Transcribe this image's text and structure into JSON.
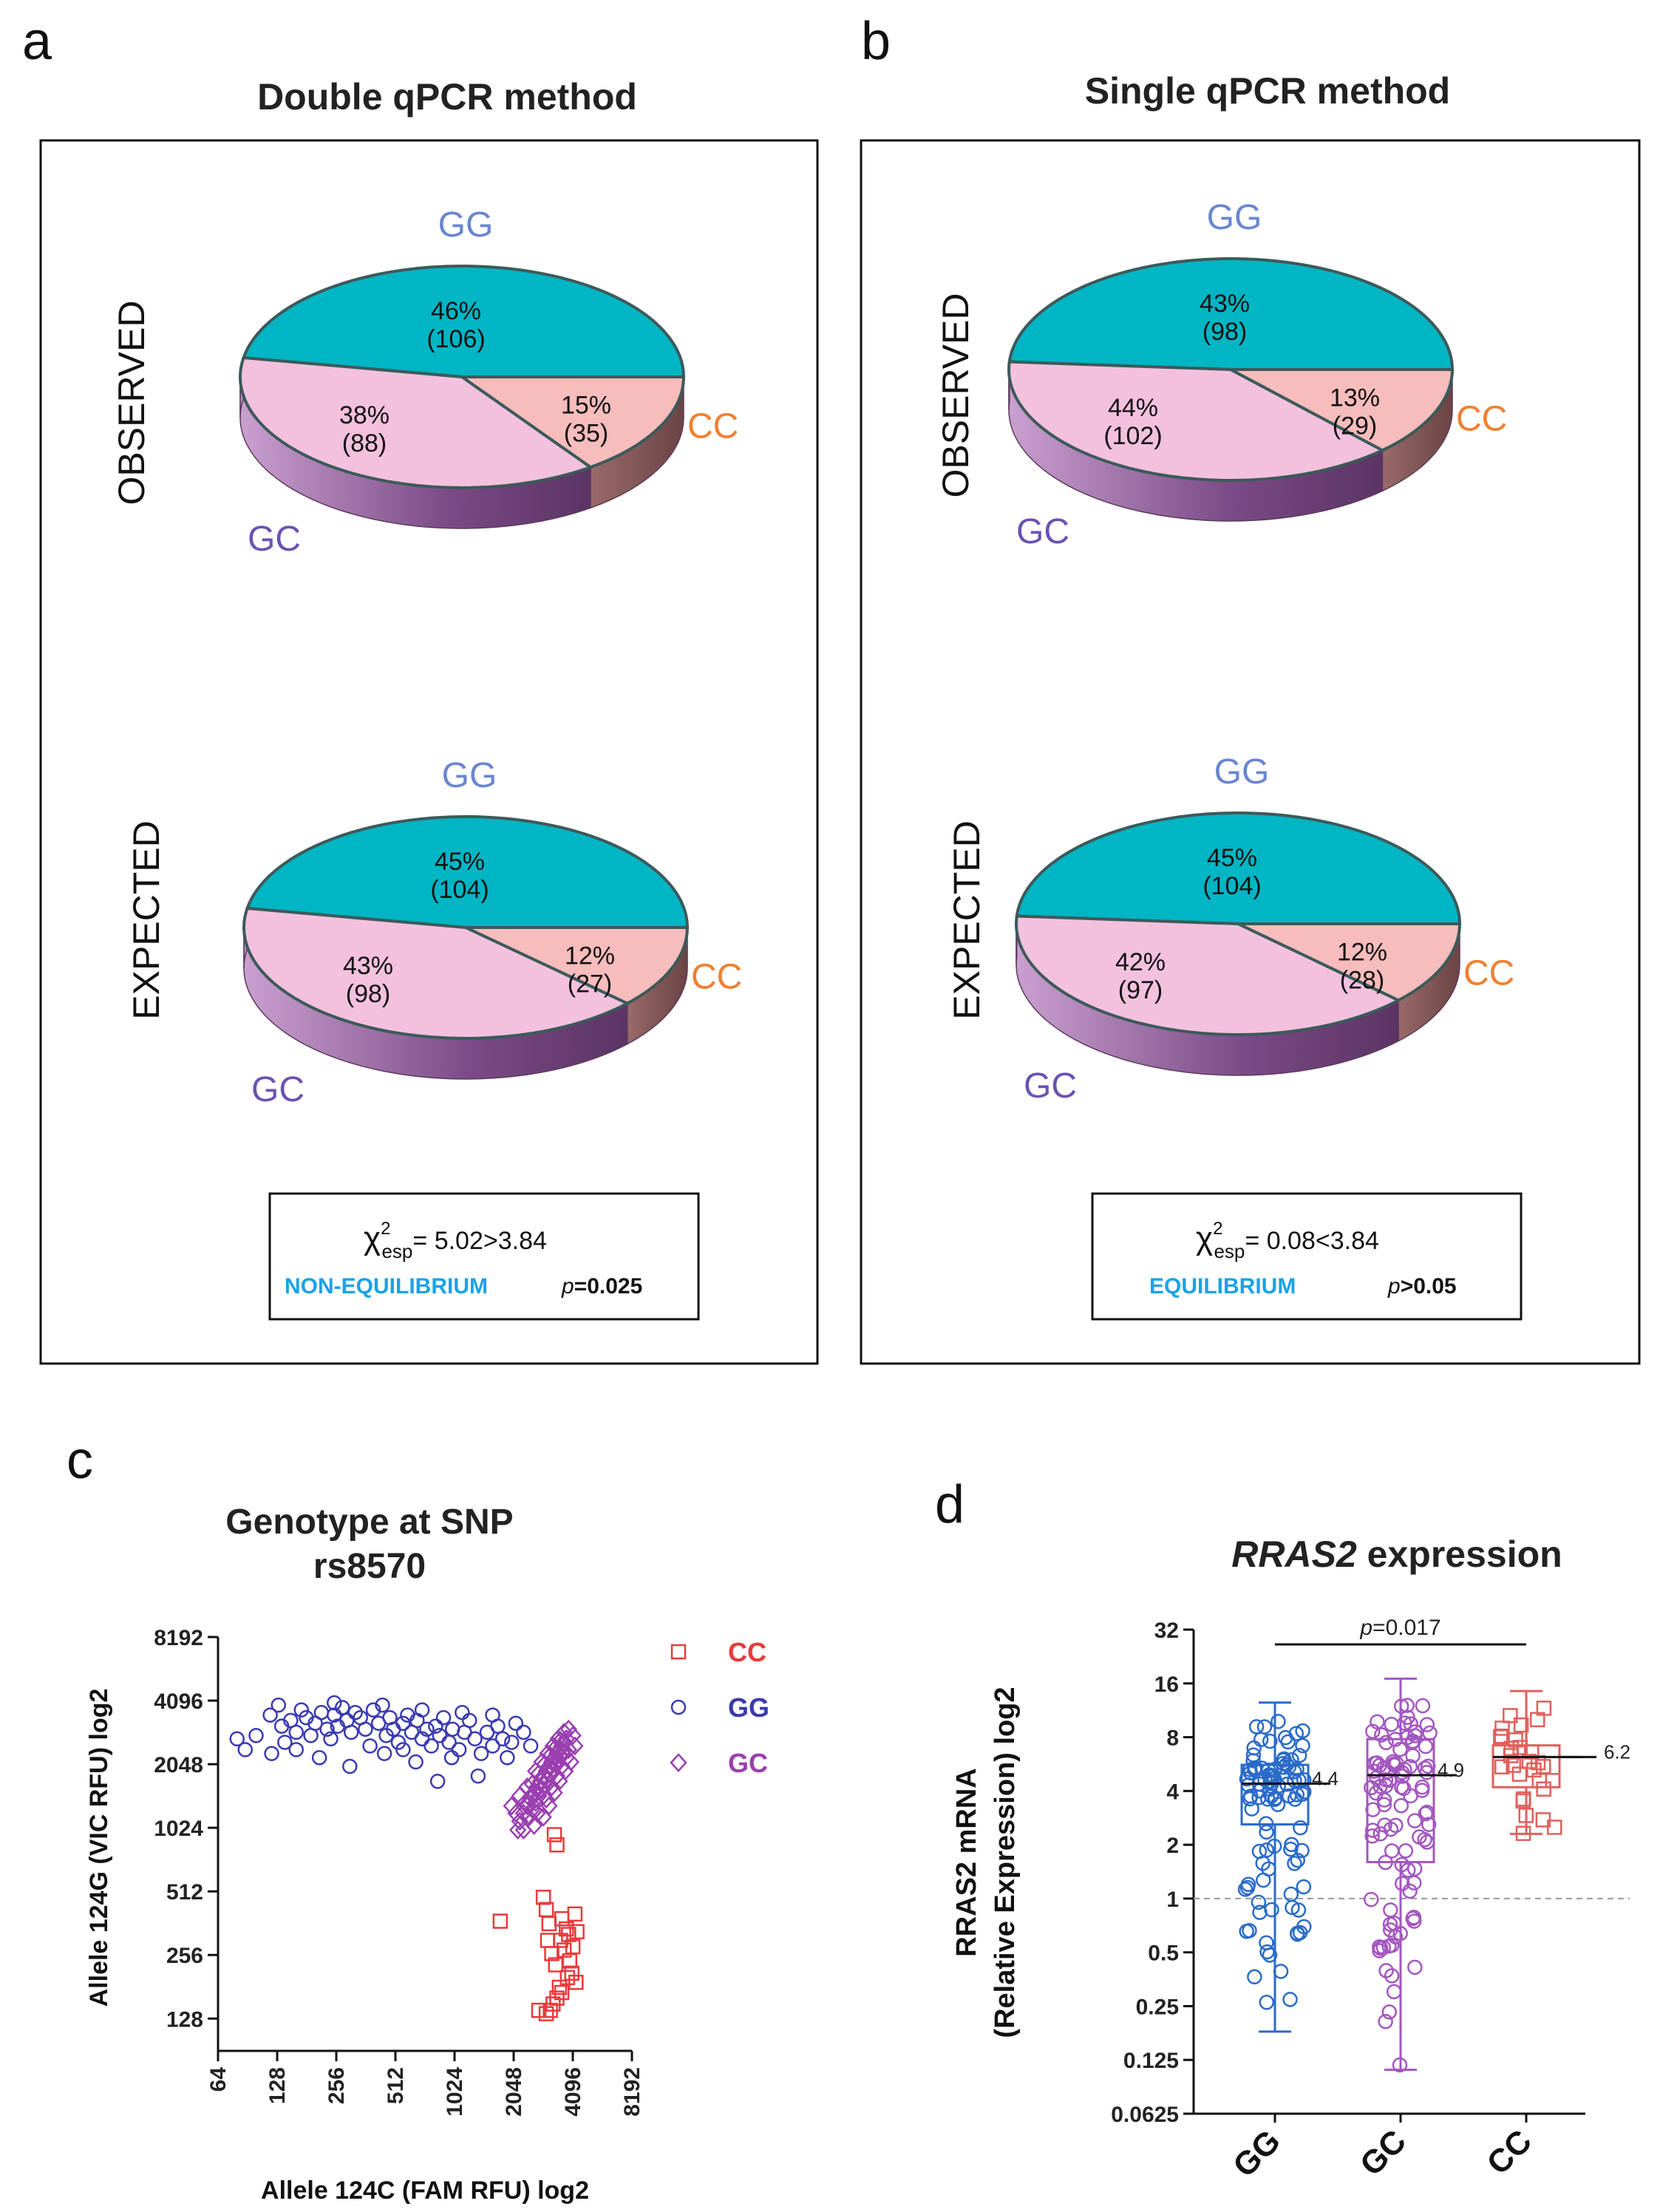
{
  "panels": {
    "a": {
      "letter": "a",
      "title": "Double qPCR method",
      "stat": {
        "chi_symbol": "χ",
        "chi_sup": "2",
        "chi_sub": "esp",
        "chi_value": "= 5.02>3.84",
        "status": "NON-EQUILIBRIUM",
        "p_italic": "p",
        "p_value": "=0.025"
      }
    },
    "b": {
      "letter": "b",
      "title": "Single qPCR method",
      "stat": {
        "chi_symbol": "χ",
        "chi_sup": "2",
        "chi_sub": "esp",
        "chi_value": "= 0.08<3.84",
        "status": "EQUILIBRIUM",
        "p_italic": "p",
        "p_value": ">0.05"
      }
    },
    "c": {
      "letter": "c"
    },
    "d": {
      "letter": "d"
    }
  },
  "colors": {
    "gg_slice": "#00b5c4",
    "gc_slice": "#f3c1de",
    "cc_slice": "#f7bcbc",
    "gg_label": "#6a86d2",
    "gc_label": "#6a52b4",
    "cc_label": "#f08030",
    "scatter_cc": "#e83b3b",
    "scatter_gg": "#3a3ab0",
    "scatter_gc": "#9a3fb0",
    "box_gg": "#2a6bc9",
    "box_gc": "#a357c0",
    "box_cc": "#e0605c"
  },
  "chart_data": [
    {
      "id": "a-observed",
      "type": "pie",
      "row_label": "OBSERVED",
      "slices": [
        {
          "name": "GG",
          "percent": 46,
          "label": "46%",
          "count": "(106)"
        },
        {
          "name": "CC",
          "percent": 15,
          "label": "15%",
          "count": "(35)"
        },
        {
          "name": "GC",
          "percent": 38,
          "label": "38%",
          "count": "(88)"
        }
      ]
    },
    {
      "id": "a-expected",
      "type": "pie",
      "row_label": "EXPECTED",
      "slices": [
        {
          "name": "GG",
          "percent": 45,
          "label": "45%",
          "count": "(104)"
        },
        {
          "name": "CC",
          "percent": 12,
          "label": "12%",
          "count": "(27)"
        },
        {
          "name": "GC",
          "percent": 43,
          "label": "43%",
          "count": "(98)"
        }
      ]
    },
    {
      "id": "b-observed",
      "type": "pie",
      "row_label": "OBSERVED",
      "slices": [
        {
          "name": "GG",
          "percent": 43,
          "label": "43%",
          "count": "(98)"
        },
        {
          "name": "CC",
          "percent": 13,
          "label": "13%",
          "count": "(29)"
        },
        {
          "name": "GC",
          "percent": 44,
          "label": "44%",
          "count": "(102)"
        }
      ]
    },
    {
      "id": "b-expected",
      "type": "pie",
      "row_label": "EXPECTED",
      "slices": [
        {
          "name": "GG",
          "percent": 45,
          "label": "45%",
          "count": "(104)"
        },
        {
          "name": "CC",
          "percent": 12,
          "label": "12%",
          "count": "(28)"
        },
        {
          "name": "GC",
          "percent": 42,
          "label": "42%",
          "count": "(97)"
        }
      ]
    },
    {
      "id": "c-scatter",
      "type": "scatter",
      "title_line1": "Genotype at SNP",
      "title_line2": "rs8570",
      "xlabel": "Allele 124C (FAM RFU) log2",
      "ylabel": "Allele 124G (VIC RFU) log2",
      "xscale": "log2",
      "yscale": "log2",
      "xlim": [
        64,
        8192
      ],
      "ylim": [
        90,
        8192
      ],
      "xticks": [
        "64",
        "128",
        "256",
        "512",
        "1024",
        "2048",
        "4096",
        "8192"
      ],
      "yticks": [
        "128",
        "256",
        "512",
        "1024",
        "2048",
        "4096",
        "8192"
      ],
      "legend": [
        "CC",
        "GG",
        "GC"
      ],
      "series": [
        {
          "name": "CC",
          "marker": "square",
          "points": [
            [
              3300,
              950
            ],
            [
              3400,
              850
            ],
            [
              2900,
              480
            ],
            [
              3000,
              420
            ],
            [
              3100,
              360
            ],
            [
              3050,
              300
            ],
            [
              3200,
              260
            ],
            [
              3350,
              230
            ],
            [
              3600,
              380
            ],
            [
              3800,
              340
            ],
            [
              3550,
              300
            ],
            [
              3700,
              270
            ],
            [
              3900,
              320
            ],
            [
              4200,
              400
            ],
            [
              4300,
              330
            ],
            [
              4100,
              280
            ],
            [
              3950,
              240
            ],
            [
              4050,
              210
            ],
            [
              4250,
              190
            ],
            [
              3850,
              200
            ],
            [
              3500,
              180
            ],
            [
              3400,
              160
            ],
            [
              3250,
              150
            ],
            [
              3150,
              140
            ],
            [
              3000,
              135
            ],
            [
              2750,
              140
            ],
            [
              3600,
              170
            ],
            [
              1750,
              370
            ]
          ]
        },
        {
          "name": "GG",
          "marker": "circle",
          "points": [
            [
              80,
              2700
            ],
            [
              88,
              2400
            ],
            [
              100,
              2800
            ],
            [
              118,
              3500
            ],
            [
              135,
              3100
            ],
            [
              140,
              2600
            ],
            [
              150,
              3300
            ],
            [
              160,
              2900
            ],
            [
              170,
              3700
            ],
            [
              180,
              3400
            ],
            [
              190,
              2800
            ],
            [
              200,
              3200
            ],
            [
              215,
              3600
            ],
            [
              230,
              3000
            ],
            [
              240,
              2700
            ],
            [
              250,
              3500
            ],
            [
              260,
              3100
            ],
            [
              275,
              3800
            ],
            [
              290,
              3300
            ],
            [
              305,
              2900
            ],
            [
              320,
              3600
            ],
            [
              340,
              3400
            ],
            [
              360,
              3000
            ],
            [
              380,
              2500
            ],
            [
              395,
              3700
            ],
            [
              420,
              3200
            ],
            [
              440,
              3900
            ],
            [
              460,
              2800
            ],
            [
              480,
              3400
            ],
            [
              500,
              3000
            ],
            [
              530,
              2600
            ],
            [
              560,
              3200
            ],
            [
              590,
              3500
            ],
            [
              620,
              2900
            ],
            [
              660,
              3300
            ],
            [
              700,
              2700
            ],
            [
              740,
              3000
            ],
            [
              780,
              2500
            ],
            [
              820,
              3100
            ],
            [
              860,
              2800
            ],
            [
              900,
              3400
            ],
            [
              960,
              2600
            ],
            [
              1000,
              3000
            ],
            [
              1080,
              2400
            ],
            [
              1150,
              2900
            ],
            [
              1220,
              3300
            ],
            [
              1300,
              2700
            ],
            [
              1400,
              2300
            ],
            [
              1500,
              2900
            ],
            [
              1600,
              2500
            ],
            [
              1700,
              3100
            ],
            [
              1800,
              2700
            ],
            [
              1900,
              2200
            ],
            [
              2000,
              2600
            ],
            [
              300,
              2000
            ],
            [
              210,
              2200
            ],
            [
              120,
              2300
            ],
            [
              160,
              2400
            ],
            [
              650,
              2100
            ],
            [
              840,
              1700
            ],
            [
              1350,
              1800
            ],
            [
              990,
              2200
            ],
            [
              560,
              2400
            ],
            [
              450,
              2300
            ],
            [
              700,
              3700
            ],
            [
              250,
              4000
            ],
            [
              130,
              3900
            ],
            [
              1120,
              3600
            ],
            [
              1600,
              3500
            ],
            [
              2100,
              3200
            ],
            [
              2300,
              2900
            ],
            [
              2500,
              2500
            ]
          ]
        },
        {
          "name": "GC",
          "marker": "diamond",
          "points": [
            [
              2200,
              1100
            ],
            [
              2300,
              1200
            ],
            [
              2400,
              1300
            ],
            [
              2500,
              1400
            ],
            [
              2600,
              1500
            ],
            [
              2700,
              1600
            ],
            [
              2800,
              1700
            ],
            [
              2900,
              1800
            ],
            [
              3000,
              1900
            ],
            [
              3100,
              2000
            ],
            [
              3200,
              2100
            ],
            [
              3300,
              2200
            ],
            [
              3400,
              2300
            ],
            [
              3500,
              2400
            ],
            [
              3600,
              2500
            ],
            [
              3700,
              2600
            ],
            [
              3800,
              2700
            ],
            [
              2450,
              1150
            ],
            [
              2550,
              1250
            ],
            [
              2650,
              1350
            ],
            [
              2750,
              1450
            ],
            [
              2850,
              1550
            ],
            [
              2950,
              1650
            ],
            [
              3050,
              1750
            ],
            [
              3150,
              1850
            ],
            [
              3250,
              1950
            ],
            [
              3350,
              2050
            ],
            [
              3450,
              2150
            ],
            [
              3550,
              2250
            ],
            [
              3650,
              2350
            ],
            [
              2350,
              1350
            ],
            [
              2550,
              1650
            ],
            [
              2750,
              1850
            ],
            [
              2950,
              2050
            ],
            [
              3150,
              2250
            ],
            [
              3350,
              2450
            ],
            [
              3550,
              2650
            ],
            [
              3000,
              1400
            ],
            [
              3200,
              1600
            ],
            [
              3400,
              1800
            ],
            [
              3600,
              2000
            ],
            [
              3800,
              2200
            ],
            [
              2650,
              1900
            ],
            [
              2850,
              2100
            ],
            [
              3050,
              2300
            ],
            [
              3250,
              2500
            ],
            [
              3450,
              2700
            ],
            [
              2300,
              1000
            ],
            [
              2600,
              1050
            ],
            [
              2900,
              1150
            ],
            [
              3100,
              1300
            ],
            [
              2100,
              1200
            ],
            [
              2200,
              1450
            ],
            [
              2400,
              1600
            ],
            [
              3700,
              2900
            ],
            [
              3900,
              2400
            ],
            [
              4000,
              2100
            ],
            [
              4100,
              2800
            ],
            [
              3900,
              3000
            ],
            [
              2000,
              1300
            ],
            [
              2150,
              1000
            ],
            [
              2700,
              1200
            ],
            [
              3300,
              1500
            ],
            [
              3500,
              1700
            ],
            [
              4200,
              2500
            ],
            [
              3750,
              1900
            ]
          ]
        }
      ]
    },
    {
      "id": "d-boxplot",
      "type": "box",
      "title_italic": "RRAS2",
      "title_rest": " expression",
      "ylabel_line1": "RRAS2 mRNA",
      "ylabel_line2": "(Relative Expression) log2",
      "yscale": "log2",
      "ylim": [
        0.0625,
        32
      ],
      "yticks": [
        "32",
        "16",
        "8",
        "4",
        "2",
        "1",
        "0.5",
        "0.25",
        "0.125",
        "0.0625"
      ],
      "categories": [
        "GG",
        "GC",
        "CC"
      ],
      "reference_line": 1,
      "p_label_italic": "p",
      "p_label_rest": "=0.017",
      "series": [
        {
          "name": "GG",
          "min": 0.18,
          "q1": 2.6,
          "median": 4.4,
          "q3": 5.6,
          "max": 12.5,
          "median_label": "4.4"
        },
        {
          "name": "GC",
          "min": 0.11,
          "q1": 1.6,
          "median": 4.9,
          "q3": 7.8,
          "max": 17,
          "median_label": "4.9"
        },
        {
          "name": "CC",
          "min": 2.3,
          "q1": 4.2,
          "median": 6.2,
          "q3": 7.2,
          "max": 14.5,
          "median_label": "6.2"
        }
      ]
    }
  ]
}
